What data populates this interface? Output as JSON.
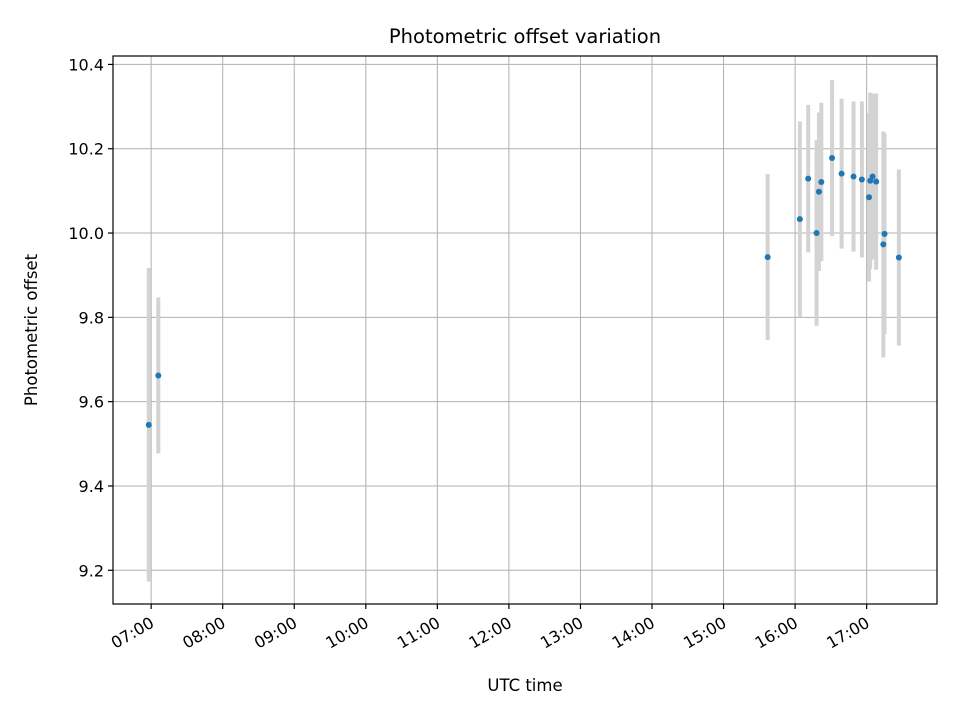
{
  "chart_data": {
    "type": "scatter",
    "title": "Photometric offset variation",
    "xlabel": "UTC time",
    "ylabel": "Photometric offset",
    "x_tick_labels": [
      "07:00",
      "08:00",
      "09:00",
      "10:00",
      "11:00",
      "12:00",
      "13:00",
      "14:00",
      "15:00",
      "16:00",
      "17:00"
    ],
    "x_ticks": [
      "07:00",
      "08:00",
      "09:00",
      "10:00",
      "11:00",
      "12:00",
      "13:00",
      "14:00",
      "15:00",
      "16:00",
      "17:00"
    ],
    "x_range": [
      "06:28",
      "17:59"
    ],
    "y_ticks": [
      9.2,
      9.4,
      9.6,
      9.8,
      10.0,
      10.2,
      10.4
    ],
    "y_tick_labels": [
      "9.2",
      "9.4",
      "9.6",
      "9.8",
      "10.0",
      "10.2",
      "10.4"
    ],
    "ylim": [
      9.12,
      10.42
    ],
    "grid": true,
    "colors": {
      "point": "#1f77b4",
      "errorbar": "#d3d3d3",
      "grid": "#b0b0b0"
    },
    "points": [
      {
        "x": "06:58",
        "y": 9.545,
        "yerr": 0.372
      },
      {
        "x": "07:06",
        "y": 9.662,
        "yerr": 0.185
      },
      {
        "x": "15:37",
        "y": 9.943,
        "yerr": 0.197
      },
      {
        "x": "16:04",
        "y": 10.033,
        "yerr": 0.232
      },
      {
        "x": "16:11",
        "y": 10.129,
        "yerr": 0.175
      },
      {
        "x": "16:18",
        "y": 10.0,
        "yerr": 0.22
      },
      {
        "x": "16:20",
        "y": 10.098,
        "yerr": 0.188
      },
      {
        "x": "16:22",
        "y": 10.121,
        "yerr": 0.188
      },
      {
        "x": "16:31",
        "y": 10.178,
        "yerr": 0.185
      },
      {
        "x": "16:39",
        "y": 10.141,
        "yerr": 0.178
      },
      {
        "x": "16:49",
        "y": 10.134,
        "yerr": 0.178
      },
      {
        "x": "16:56",
        "y": 10.127,
        "yerr": 0.185
      },
      {
        "x": "17:02",
        "y": 10.085,
        "yerr": 0.2
      },
      {
        "x": "17:03",
        "y": 10.124,
        "yerr": 0.209
      },
      {
        "x": "17:05",
        "y": 10.134,
        "yerr": 0.197
      },
      {
        "x": "17:08",
        "y": 10.122,
        "yerr": 0.209
      },
      {
        "x": "17:14",
        "y": 9.973,
        "yerr": 0.268
      },
      {
        "x": "17:15",
        "y": 9.998,
        "yerr": 0.238
      },
      {
        "x": "17:27",
        "y": 9.942,
        "yerr": 0.209
      }
    ]
  }
}
